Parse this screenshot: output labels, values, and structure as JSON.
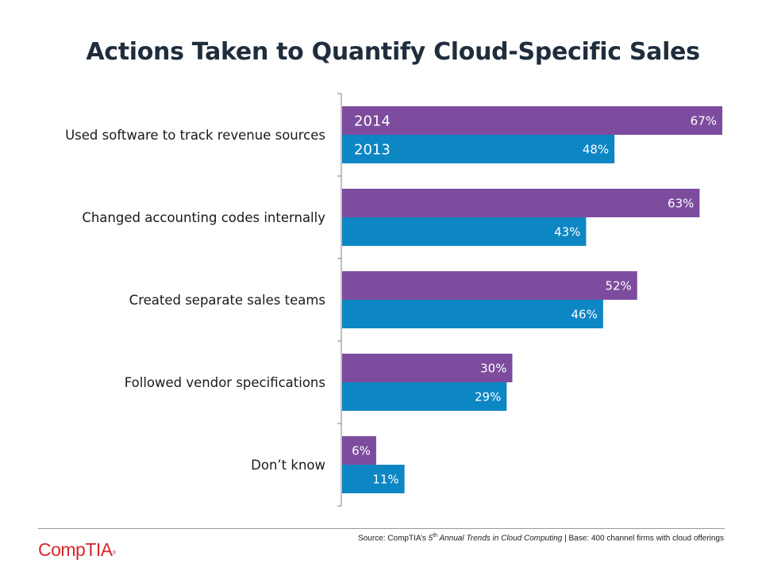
{
  "chart_data": {
    "type": "bar",
    "orientation": "horizontal",
    "title": "Actions Taken to Quantify Cloud-Specific Sales",
    "categories": [
      "Used software to track revenue sources",
      "Changed accounting codes internally",
      "Created separate sales teams",
      "Followed vendor specifications",
      "Don’t know"
    ],
    "series": [
      {
        "name": "2014",
        "color": "#7d4c9e",
        "values": [
          67,
          63,
          52,
          30,
          6
        ]
      },
      {
        "name": "2013",
        "color": "#0d86c4",
        "values": [
          48,
          43,
          46,
          29,
          11
        ]
      }
    ],
    "value_suffix": "%",
    "xlim": [
      0,
      67
    ],
    "legend": "inside-first-bars",
    "grid": false
  },
  "footer": {
    "source_prefix": "Source: CompTIA’s ",
    "source_ordinal": "5",
    "source_ordinal_sup": "th",
    "source_title": " Annual Trends in Cloud Computing",
    "source_suffix": " | Base: 400 channel firms with cloud offerings"
  },
  "logo": {
    "text": "CompTIA",
    "mark": "®"
  }
}
